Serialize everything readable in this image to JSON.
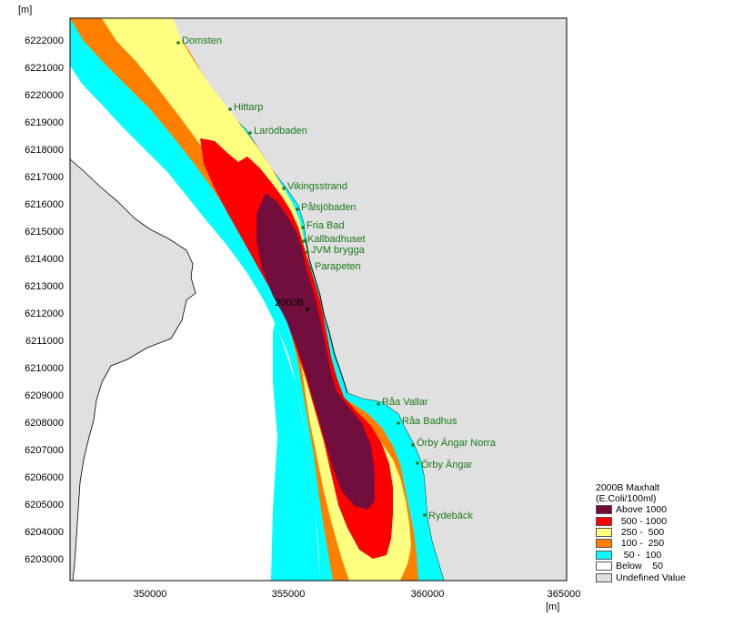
{
  "map": {
    "y_unit": "[m]",
    "x_unit": "[m]",
    "y_ticks": [
      "6222000",
      "6221000",
      "6220000",
      "6219000",
      "6218000",
      "6217000",
      "6216000",
      "6215000",
      "6214000",
      "6213000",
      "6212000",
      "6211000",
      "6210000",
      "6209000",
      "6208000",
      "6207000",
      "6206000",
      "6205000",
      "6204000",
      "6203000"
    ],
    "x_ticks": [
      "350000",
      "355000",
      "360000",
      "365000"
    ],
    "places": [
      {
        "name": "Domsten"
      },
      {
        "name": "Hittarp"
      },
      {
        "name": "Larödbaden"
      },
      {
        "name": "Vikingsstrand"
      },
      {
        "name": "Pålsjöbaden"
      },
      {
        "name": "Fria Bad"
      },
      {
        "name": "Kallbadhuset"
      },
      {
        "name": "JVM brygga"
      },
      {
        "name": "Parapeten"
      },
      {
        "name": "Råa Vallar"
      },
      {
        "name": "Råa Badhus"
      },
      {
        "name": "Örby Ängar Norra"
      },
      {
        "name": "Örby Ängar"
      },
      {
        "name": "Rydebäck"
      }
    ],
    "station": "2000B"
  },
  "legend": {
    "title_line1": "2000B Maxhalt",
    "title_line2": "(E.Coli/100ml)",
    "items": [
      {
        "label": "Above 1000",
        "color": "#720e3e"
      },
      {
        "label": "  500 - 1000",
        "color": "#ff0000"
      },
      {
        "label": "  250 -  500",
        "color": "#ffff80"
      },
      {
        "label": "  100 -  250",
        "color": "#ff8000"
      },
      {
        "label": "   50 -  100",
        "color": "#00ffff"
      },
      {
        "label": "Below    50",
        "color": "#ffffff"
      },
      {
        "label": "Undefined Value",
        "color": "#e0e0e0"
      }
    ]
  }
}
